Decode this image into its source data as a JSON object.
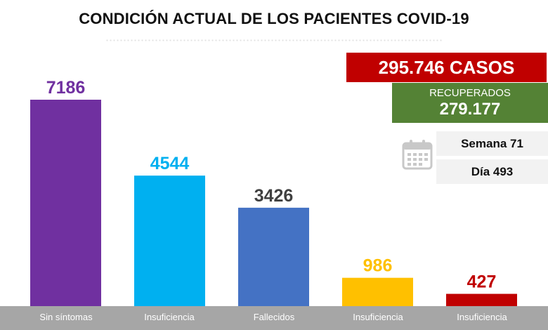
{
  "header": {
    "title": "CONDICIÓN ACTUAL DE LOS PACIENTES COVID-19"
  },
  "summary": {
    "cases": "295.746 CASOS",
    "recovered_label": "RECUPERADOS",
    "recovered_value": "279.177",
    "week": "Semana 71",
    "day": "Día 493",
    "calendar_icon": "calendar-icon"
  },
  "colors": {
    "cases_bg": "#c00000",
    "recovered_bg": "#548235",
    "category_strip": "#a6a6a6"
  },
  "chart_data": {
    "type": "bar",
    "categories": [
      "Sin síntomas",
      "Insuficiencia",
      "Fallecidos",
      "Insuficiencia",
      "Insuficiencia"
    ],
    "values": [
      7186,
      4544,
      3426,
      986,
      427
    ],
    "value_labels": [
      "7186",
      "4544",
      "3426",
      "986",
      "427"
    ],
    "colors": [
      "#7030a0",
      "#00b0f0",
      "#4472c4",
      "#ffc000",
      "#c00000"
    ],
    "label_colors": [
      "#7030a0",
      "#00b0f0",
      "#404040",
      "#ffc000",
      "#c00000"
    ],
    "ylim": [
      0,
      7186
    ],
    "grid": false,
    "legend": "none"
  }
}
